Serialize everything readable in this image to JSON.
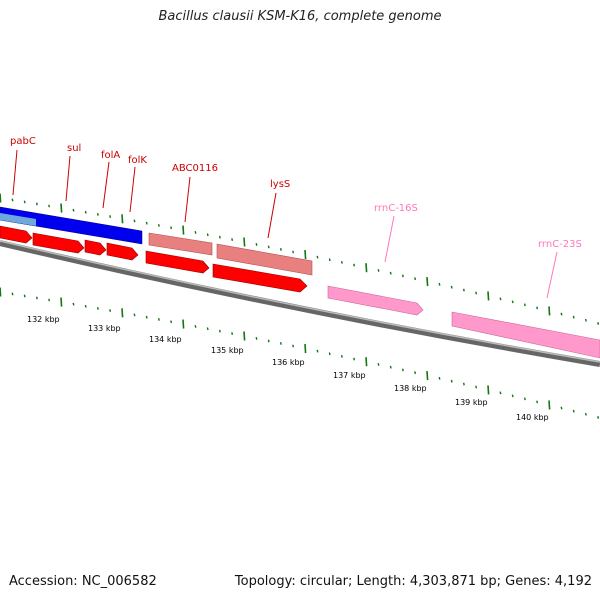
{
  "title": "Bacillus clausii KSM-K16, complete genome",
  "accession": "Accession: NC_006582",
  "summary": "Topology: circular; Length: 4,303,871 bp; Genes: 4,192",
  "colors": {
    "red_gene": "#ff0000",
    "salmon_gene": "#e88080",
    "blue_gene": "#0000ee",
    "lightblue_gene": "#6fa8dc",
    "pink_rna": "#ff99cc",
    "backbone": "#777777",
    "tick_green": "#117711"
  },
  "scale_labels": [
    "132 kbp",
    "133 kbp",
    "134 kbp",
    "135 kbp",
    "136 kbp",
    "137 kbp",
    "138 kbp",
    "139 kbp",
    "140 kbp"
  ],
  "gene_labels": [
    {
      "text": "pabC",
      "kind": "cds"
    },
    {
      "text": "sul",
      "kind": "cds"
    },
    {
      "text": "folA",
      "kind": "cds"
    },
    {
      "text": "folK",
      "kind": "cds"
    },
    {
      "text": "ABC0116",
      "kind": "cds"
    },
    {
      "text": "lysS",
      "kind": "cds"
    },
    {
      "text": "rrnC-16S",
      "kind": "rna"
    },
    {
      "text": "rrnC-23S",
      "kind": "rna"
    }
  ]
}
